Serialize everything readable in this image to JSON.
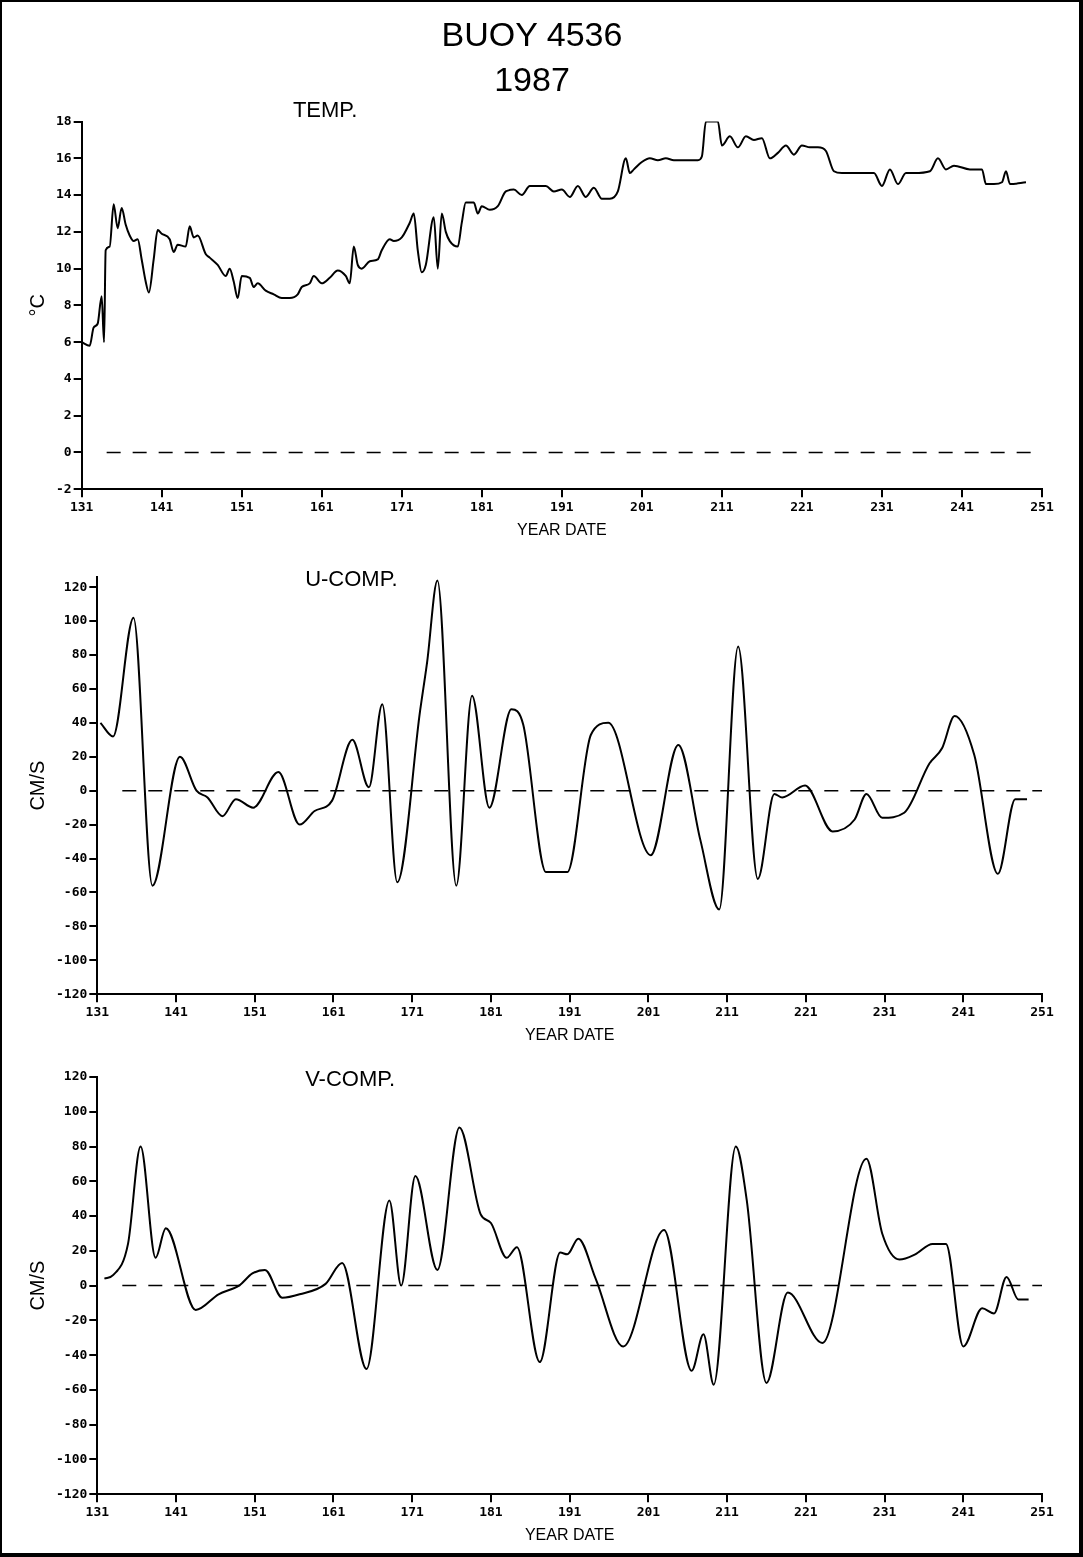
{
  "chart_data": [
    {
      "type": "line",
      "title": "BUOY 4536",
      "subtitle": "1987",
      "annotations": [
        "TEMP."
      ],
      "xlabel": "YEAR DATE",
      "ylabel": "°C",
      "xlim": [
        131,
        251
      ],
      "xticks": [
        131,
        141,
        151,
        161,
        171,
        181,
        191,
        201,
        211,
        221,
        231,
        241,
        251
      ],
      "ylim": [
        -2,
        18
      ],
      "yticks": [
        -2,
        0,
        2,
        4,
        6,
        8,
        10,
        12,
        14,
        16,
        18
      ],
      "marker": "none",
      "line_style": "solid",
      "grid": false,
      "legend": false,
      "ref_lines": [
        {
          "axis": "y",
          "value": 0,
          "color": "#000000",
          "line_style": "dashed"
        }
      ],
      "series": [
        {
          "color": "#000000",
          "x": [
            131,
            132,
            132.5,
            133,
            133.5,
            133.8,
            134,
            134.5,
            135,
            135.5,
            136,
            136.5,
            137,
            137.5,
            138,
            138.5,
            139,
            139.4,
            140,
            140.5,
            141,
            142,
            142.5,
            143,
            144,
            144.5,
            145,
            145.5,
            146.5,
            147,
            148,
            149,
            149.5,
            150,
            150.5,
            151,
            152,
            152.5,
            153,
            154,
            155,
            156,
            157,
            158,
            158.5,
            159.5,
            160,
            161,
            162,
            163,
            164,
            164.5,
            165,
            165.5,
            166,
            167,
            168,
            168.5,
            169.5,
            170,
            171,
            172,
            172.5,
            173,
            173.5,
            174,
            175,
            175.5,
            176,
            176.5,
            177,
            178,
            178.5,
            179,
            180,
            180.5,
            181,
            182,
            183,
            184,
            185,
            186,
            187,
            188,
            189,
            190,
            191,
            192,
            193,
            194,
            195,
            196,
            197,
            198,
            199,
            199.5,
            200,
            201,
            202,
            203,
            204,
            205,
            206,
            208,
            208.5,
            209,
            210.5,
            211,
            212,
            213,
            214,
            215,
            216,
            217,
            218,
            219,
            220,
            221,
            222,
            223,
            224,
            225,
            226,
            230,
            231,
            232,
            233,
            234,
            235,
            237,
            238,
            239,
            240,
            242,
            243.5,
            244,
            245,
            246,
            246.5,
            247,
            249
          ],
          "values": [
            6.0,
            5.8,
            6.8,
            7,
            8.5,
            6,
            11,
            11.2,
            13.5,
            12.2,
            13.3,
            12.4,
            11.8,
            11.5,
            11.6,
            10.5,
            9.3,
            8.7,
            10.5,
            12.1,
            11.9,
            11.6,
            10.9,
            11.3,
            11.2,
            12.3,
            11.7,
            11.8,
            10.8,
            10.6,
            10.2,
            9.6,
            10,
            9.3,
            8.4,
            9.6,
            9.5,
            9,
            9.2,
            8.8,
            8.6,
            8.4,
            8.4,
            8.6,
            9.0,
            9.2,
            9.6,
            9.2,
            9.5,
            9.9,
            9.6,
            9.2,
            11.2,
            10.2,
            10.0,
            10.4,
            10.5,
            11.0,
            11.6,
            11.5,
            11.7,
            12.5,
            13.0,
            11.0,
            9.8,
            10.2,
            12.8,
            10.0,
            13.0,
            12.0,
            11.5,
            11.2,
            12.5,
            13.6,
            13.6,
            13.0,
            13.4,
            13.2,
            13.4,
            14.2,
            14.3,
            14.0,
            14.5,
            14.5,
            14.5,
            14.2,
            14.3,
            13.9,
            14.5,
            13.9,
            14.4,
            13.8,
            13.8,
            14.2,
            16.0,
            15.2,
            15.4,
            15.8,
            16.0,
            15.9,
            16.0,
            15.9,
            15.9,
            15.9,
            16.1,
            18.0,
            18.0,
            16.7,
            17.2,
            16.6,
            17.2,
            17.0,
            17.1,
            16.0,
            16.3,
            16.7,
            16.2,
            16.7,
            16.6,
            16.6,
            16.4,
            15.3,
            15.2,
            15.2,
            14.5,
            15.4,
            14.6,
            15.2,
            15.2,
            15.3,
            16.0,
            15.4,
            15.6,
            15.4,
            15.4,
            14.6,
            14.6,
            14.7,
            15.3,
            14.6,
            14.7
          ]
        }
      ]
    },
    {
      "type": "line",
      "annotations": [
        "U-COMP."
      ],
      "xlabel": "YEAR DATE",
      "ylabel": "CM/S",
      "xlim": [
        131,
        251
      ],
      "xticks": [
        131,
        141,
        151,
        161,
        171,
        181,
        191,
        201,
        211,
        221,
        231,
        241,
        251
      ],
      "ylim": [
        -120,
        126
      ],
      "yticks": [
        -120,
        -100,
        -80,
        -60,
        -40,
        -20,
        0,
        20,
        40,
        60,
        80,
        100,
        120
      ],
      "marker": "none",
      "line_style": "solid",
      "grid": false,
      "legend": false,
      "ref_lines": [
        {
          "axis": "y",
          "value": 0,
          "color": "#000000",
          "line_style": "dashed"
        }
      ],
      "series": [
        {
          "color": "#000000",
          "x": [
            131.4,
            133,
            135.6,
            138,
            141.5,
            143.6,
            145,
            146.9,
            148.6,
            150.8,
            154,
            156.7,
            158.6,
            160.8,
            163.4,
            165.5,
            167.2,
            169.1,
            172,
            172.9,
            174.2,
            176.6,
            178.6,
            180.8,
            183.6,
            185.1,
            188,
            189.9,
            190.7,
            193.7,
            195.9,
            201.3,
            204.8,
            207.6,
            210,
            212.4,
            214.9,
            217,
            218,
            220.9,
            224.4,
            227.2,
            228.7,
            230.7,
            233.5,
            236.7,
            238.3,
            239.9,
            242.4,
            245.4,
            247.6,
            249.1
          ],
          "values": [
            40,
            32,
            102,
            -56,
            20,
            0,
            -4,
            -15,
            -5,
            -10,
            11,
            -20,
            -12,
            -6,
            30,
            2,
            51,
            -54,
            47,
            76,
            124,
            -56,
            56,
            -10,
            48,
            39,
            -48,
            -48,
            -48,
            33,
            40,
            -38,
            27,
            -29,
            -70,
            85,
            -52,
            -2,
            -4,
            3,
            -24,
            -17,
            -2,
            -16,
            -13,
            16,
            25,
            44,
            21,
            -49,
            -5,
            -5
          ]
        }
      ]
    },
    {
      "type": "line",
      "annotations": [
        "V-COMP."
      ],
      "xlabel": "YEAR DATE",
      "ylabel": "CM/S",
      "xlim": [
        131,
        251
      ],
      "xticks": [
        131,
        141,
        151,
        161,
        171,
        181,
        191,
        201,
        211,
        221,
        231,
        241,
        251
      ],
      "ylim": [
        -120,
        120
      ],
      "yticks": [
        -120,
        -100,
        -80,
        -60,
        -40,
        -20,
        0,
        20,
        40,
        60,
        80,
        100,
        120
      ],
      "marker": "none",
      "line_style": "solid",
      "grid": false,
      "legend": false,
      "ref_lines": [
        {
          "axis": "y",
          "value": 0,
          "color": "#000000",
          "line_style": "dashed"
        }
      ],
      "series": [
        {
          "color": "#000000",
          "x": [
            131.9,
            133,
            134.9,
            136.5,
            138.4,
            139.7,
            143.5,
            146.4,
            149,
            150.7,
            152.3,
            154.5,
            156.7,
            160,
            162.1,
            165.2,
            168.1,
            169.6,
            171.4,
            174.2,
            177,
            179.7,
            181,
            183,
            184.3,
            187.2,
            189.8,
            190.7,
            192.1,
            194.3,
            197.8,
            203,
            206.5,
            208,
            209.3,
            212.1,
            213.5,
            216,
            218.7,
            223.1,
            228.7,
            230.7,
            232.9,
            234.9,
            237.1,
            238.8,
            241,
            243.4,
            244.9,
            246.5,
            248,
            249.3
          ],
          "values": [
            4,
            6,
            24,
            80,
            16,
            33,
            -14,
            -5,
            0,
            7,
            9,
            -7,
            -5,
            1,
            13,
            -48,
            49,
            0,
            63,
            9,
            91,
            41,
            36,
            16,
            22,
            -44,
            19,
            18,
            27,
            4,
            -35,
            32,
            -49,
            -28,
            -57,
            80,
            49,
            -56,
            -4,
            -33,
            73,
            30,
            15,
            18,
            24,
            24,
            -35,
            -13,
            -16,
            5,
            -8,
            -8
          ]
        }
      ]
    }
  ]
}
